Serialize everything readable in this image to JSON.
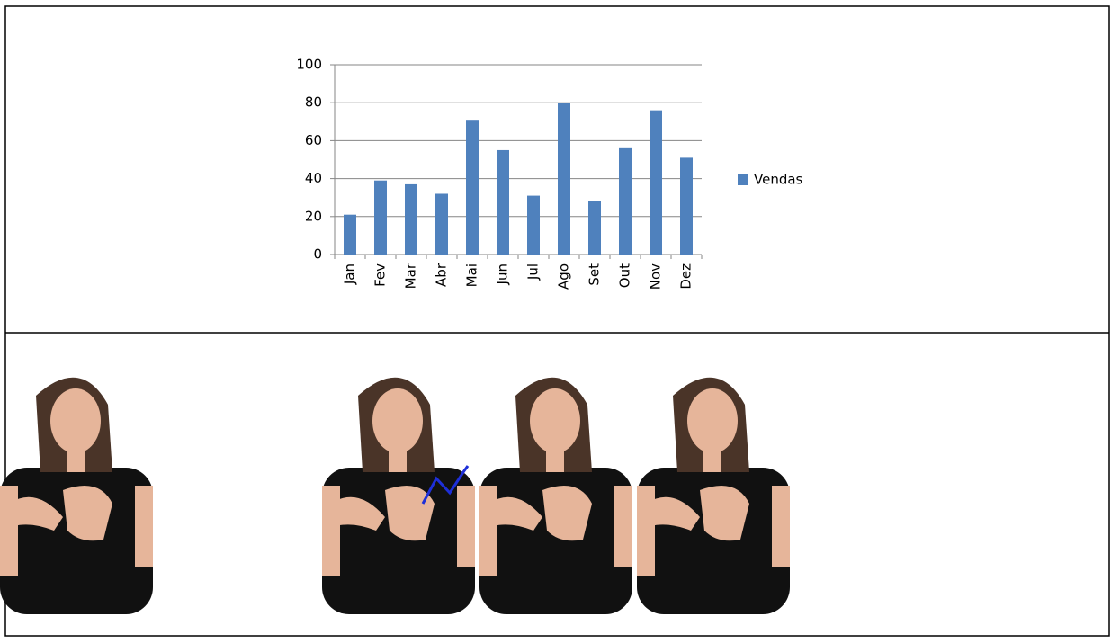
{
  "chart_data": {
    "type": "bar",
    "categories": [
      "Jan",
      "Fev",
      "Mar",
      "Abr",
      "Mai",
      "Jun",
      "Jul",
      "Ago",
      "Set",
      "Out",
      "Nov",
      "Dez"
    ],
    "series": [
      {
        "name": "Vendas",
        "color": "#4f81bd",
        "values": [
          21,
          39,
          37,
          32,
          71,
          55,
          31,
          80,
          28,
          56,
          76,
          51
        ]
      }
    ],
    "ylim": [
      0,
      100
    ],
    "yticks": [
      0,
      20,
      40,
      60,
      80,
      100
    ],
    "grid": true,
    "legend": "right"
  }
}
